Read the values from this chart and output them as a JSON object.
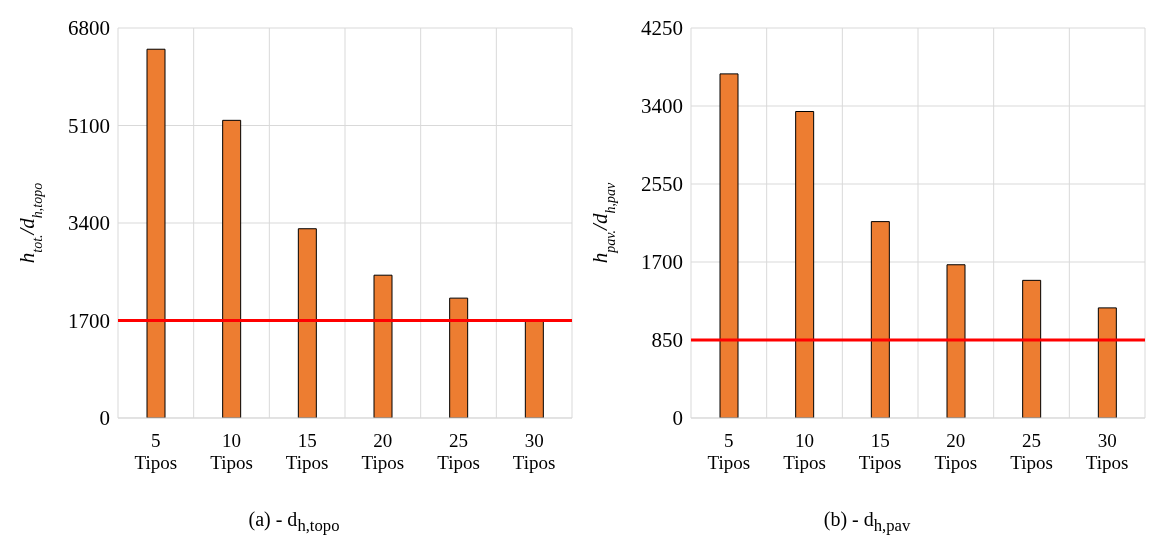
{
  "chart_data": [
    {
      "type": "bar",
      "title": "(a) - d$_{h,topo}$",
      "ylabel": "h$_{tot.}$/d$_{h,topo}$",
      "categories": [
        "5 Tipos",
        "10 Tipos",
        "15 Tipos",
        "20 Tipos",
        "25 Tipos",
        "30 Tipos"
      ],
      "values": [
        6430,
        5190,
        3300,
        2490,
        2090,
        1690
      ],
      "color": "#ed7d31",
      "ylim": [
        0,
        6800
      ],
      "yticks": [
        0,
        1700,
        3400,
        5100,
        6800
      ],
      "grid": true,
      "ref_lines": [
        {
          "axis": "y",
          "value": 1700,
          "color": "#ff0000"
        }
      ]
    },
    {
      "type": "bar",
      "title": "(b) - d$_{h,pav}$",
      "ylabel": "h$_{pav.}$/d$_{h,pav}$",
      "categories": [
        "5 Tipos",
        "10 Tipos",
        "15 Tipos",
        "20 Tipos",
        "25 Tipos",
        "30 Tipos"
      ],
      "values": [
        3750,
        3340,
        2140,
        1670,
        1500,
        1200
      ],
      "color": "#ed7d31",
      "ylim": [
        0,
        4250
      ],
      "yticks": [
        0,
        850,
        1700,
        2550,
        3400,
        4250
      ],
      "grid": true,
      "ref_lines": [
        {
          "axis": "y",
          "value": 850,
          "color": "#ff0000"
        }
      ]
    }
  ]
}
